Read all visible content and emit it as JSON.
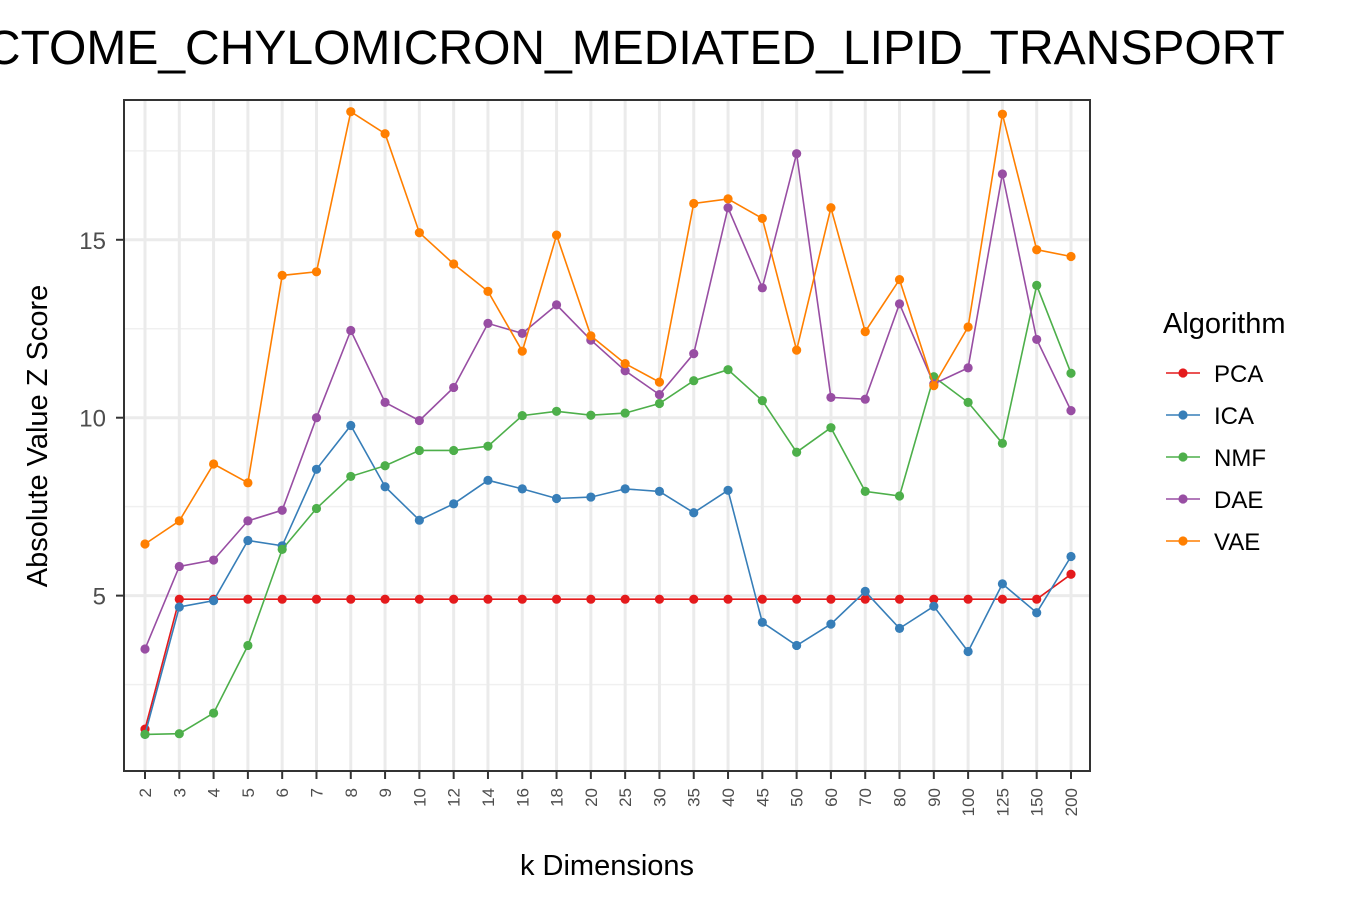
{
  "chart_data": {
    "type": "line",
    "title": "REACTOME_CHYLOMICRON_MEDIATED_LIPID_TRANSPORT",
    "xlabel": "k Dimensions",
    "ylabel": "Absolute Value Z Score",
    "categories": [
      "2",
      "3",
      "4",
      "5",
      "6",
      "7",
      "8",
      "9",
      "10",
      "12",
      "14",
      "16",
      "18",
      "20",
      "25",
      "30",
      "35",
      "40",
      "45",
      "50",
      "60",
      "70",
      "80",
      "90",
      "100",
      "125",
      "150",
      "200"
    ],
    "yticks": [
      5,
      10,
      15
    ],
    "ylim": [
      0.1,
      18.9
    ],
    "grid": true,
    "legend": {
      "title": "Algorithm",
      "placement": "right"
    },
    "series": [
      {
        "name": "PCA",
        "color": "#e41a1c",
        "values": [
          1.25,
          4.9,
          4.9,
          4.9,
          4.9,
          4.9,
          4.9,
          4.9,
          4.9,
          4.9,
          4.9,
          4.9,
          4.9,
          4.9,
          4.9,
          4.9,
          4.9,
          4.9,
          4.9,
          4.9,
          4.9,
          4.9,
          4.9,
          4.9,
          4.9,
          4.9,
          4.9,
          5.6
        ]
      },
      {
        "name": "ICA",
        "color": "#377eb8",
        "values": [
          1.1,
          4.68,
          4.86,
          6.55,
          6.4,
          8.55,
          9.78,
          8.06,
          7.12,
          7.58,
          8.24,
          8.0,
          7.73,
          7.77,
          8.0,
          7.93,
          7.33,
          7.96,
          4.25,
          3.6,
          4.2,
          5.12,
          4.08,
          4.7,
          3.43,
          5.33,
          4.52,
          6.1
        ]
      },
      {
        "name": "NMF",
        "color": "#4daf4a",
        "values": [
          1.1,
          1.12,
          1.7,
          3.6,
          6.3,
          7.45,
          8.35,
          8.65,
          9.08,
          9.08,
          9.2,
          10.06,
          10.18,
          10.07,
          10.13,
          10.4,
          11.04,
          11.35,
          10.48,
          9.03,
          9.72,
          7.93,
          7.8,
          11.15,
          10.43,
          9.28,
          13.72,
          11.25
        ]
      },
      {
        "name": "DAE",
        "color": "#984ea3",
        "values": [
          3.5,
          5.82,
          6.0,
          7.1,
          7.4,
          10.0,
          12.45,
          10.43,
          9.92,
          10.85,
          12.65,
          12.37,
          13.17,
          12.18,
          11.32,
          10.65,
          11.8,
          15.9,
          13.65,
          17.42,
          10.57,
          10.52,
          13.2,
          10.95,
          11.4,
          16.85,
          12.2,
          10.2
        ]
      },
      {
        "name": "VAE",
        "color": "#ff7f00",
        "values": [
          6.45,
          7.1,
          8.7,
          8.17,
          14.0,
          14.1,
          18.6,
          17.98,
          15.2,
          14.32,
          13.55,
          11.87,
          15.13,
          12.3,
          11.52,
          11.0,
          16.02,
          16.15,
          15.6,
          11.9,
          15.9,
          12.42,
          13.88,
          10.9,
          12.55,
          18.53,
          14.72,
          14.53
        ]
      }
    ]
  }
}
